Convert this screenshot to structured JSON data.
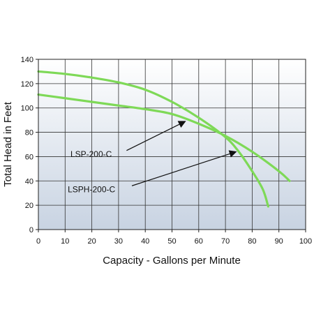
{
  "chart_data": {
    "type": "line",
    "title": "",
    "xlabel": "Capacity - Gallons per Minute",
    "ylabel": "Total Head in Feet",
    "xlim": [
      0,
      100
    ],
    "ylim": [
      0,
      140
    ],
    "xticks": [
      "0",
      "10",
      "20",
      "30",
      "40",
      "50",
      "60",
      "70",
      "80",
      "90",
      "100"
    ],
    "yticks": [
      "0",
      "20",
      "40",
      "60",
      "80",
      "100",
      "120",
      "140"
    ],
    "grid": true,
    "line_color": "#7ed957",
    "series": [
      {
        "name": "LSP-200-C",
        "x": [
          0,
          10,
          20,
          30,
          40,
          50,
          60,
          70,
          80,
          90,
          94
        ],
        "y": [
          111,
          108,
          105,
          102,
          99,
          95,
          87,
          77,
          64,
          48,
          40
        ]
      },
      {
        "name": "LSPH-200-C",
        "x": [
          0,
          10,
          20,
          30,
          40,
          50,
          60,
          70,
          75,
          80,
          84,
          86
        ],
        "y": [
          130,
          128,
          125,
          121,
          115,
          105,
          92,
          76,
          64,
          48,
          33,
          19
        ]
      }
    ],
    "annotations": [
      {
        "text": "LSP-200-C",
        "text_x": 12,
        "text_y": 62,
        "arrow_from": [
          33,
          65
        ],
        "arrow_to": [
          55,
          89
        ]
      },
      {
        "text": "LSPH-200-C",
        "text_x": 11,
        "text_y": 33,
        "arrow_from": [
          35,
          36
        ],
        "arrow_to": [
          74,
          64
        ]
      }
    ]
  }
}
